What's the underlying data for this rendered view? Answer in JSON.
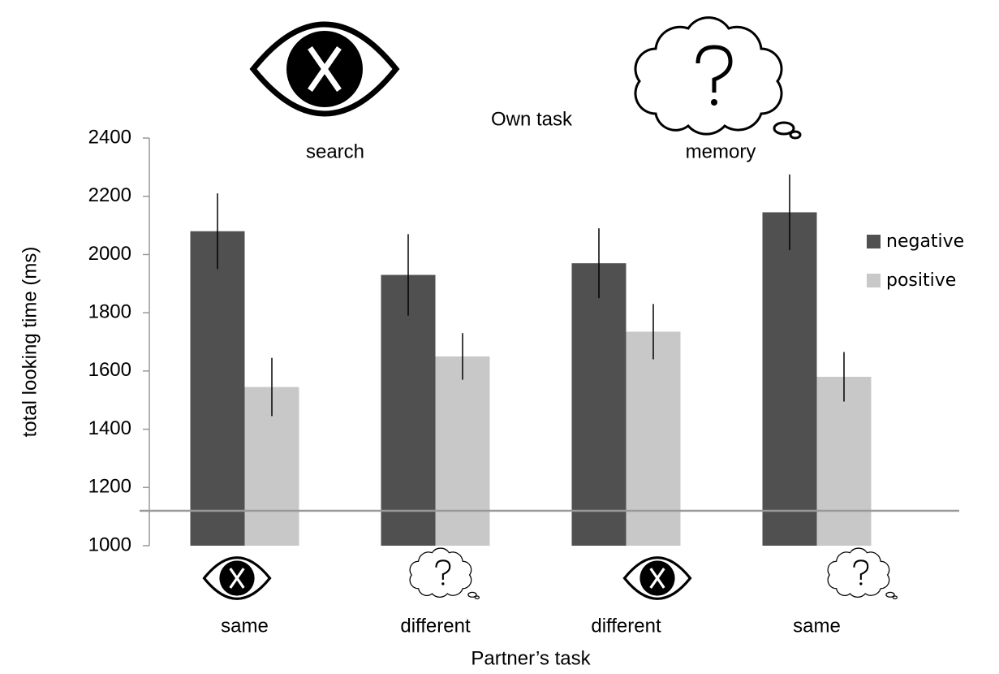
{
  "chart_data": {
    "type": "bar",
    "group_title": "Own task",
    "group_labels": [
      "search",
      "memory"
    ],
    "categories": [
      "same",
      "different",
      "different",
      "same"
    ],
    "xlabel": "Partner’s task",
    "ylabel": "total looking time (ms)",
    "series": [
      {
        "name": "negative",
        "color": "#505050",
        "values": [
          2080,
          1930,
          1970,
          2145
        ],
        "errors": [
          130,
          140,
          120,
          130
        ]
      },
      {
        "name": "positive",
        "color": "#c8c8c8",
        "values": [
          1545,
          1650,
          1735,
          1580
        ],
        "errors": [
          100,
          80,
          95,
          85
        ]
      }
    ],
    "hline": 1120,
    "ylim": [
      1000,
      2400
    ],
    "yticks": [
      1000,
      1200,
      1400,
      1600,
      1800,
      2000,
      2200,
      2400
    ],
    "legend": "right"
  }
}
